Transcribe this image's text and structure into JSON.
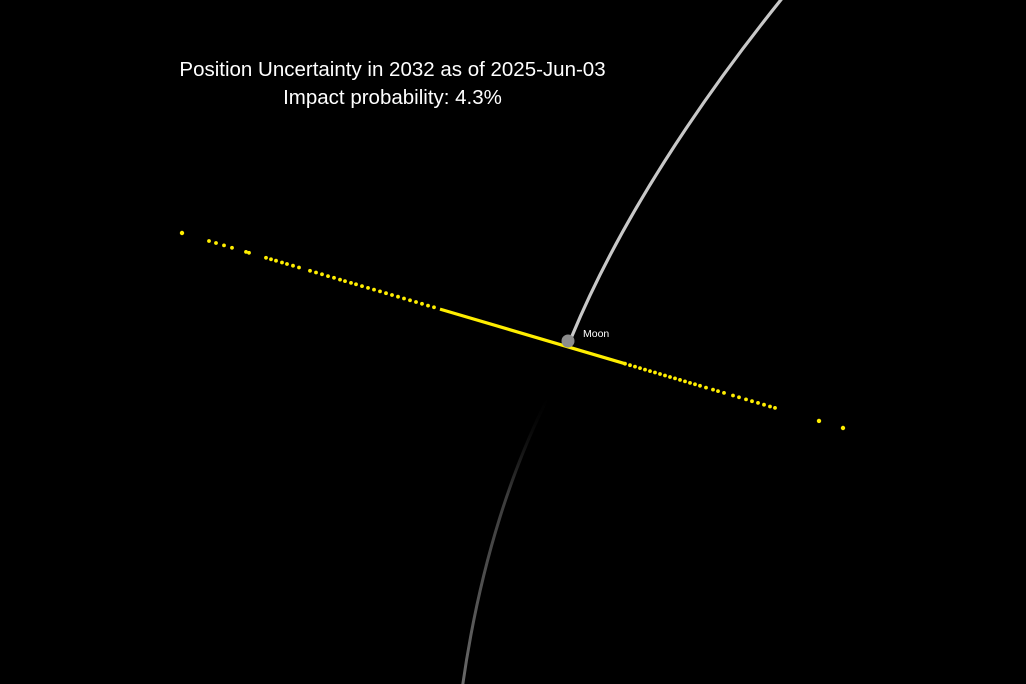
{
  "title": {
    "line1": "Position Uncertainty in 2032 as of 2025-Jun-03",
    "line2": "Impact probability: 4.3%"
  },
  "moon": {
    "label": "Moon"
  },
  "colors": {
    "background": "#000000",
    "uncertainty_points": "#ffee00",
    "moon_orbit": "#c8c8c8",
    "moon_body": "#8c8c8c",
    "text": "#ffffff"
  }
}
